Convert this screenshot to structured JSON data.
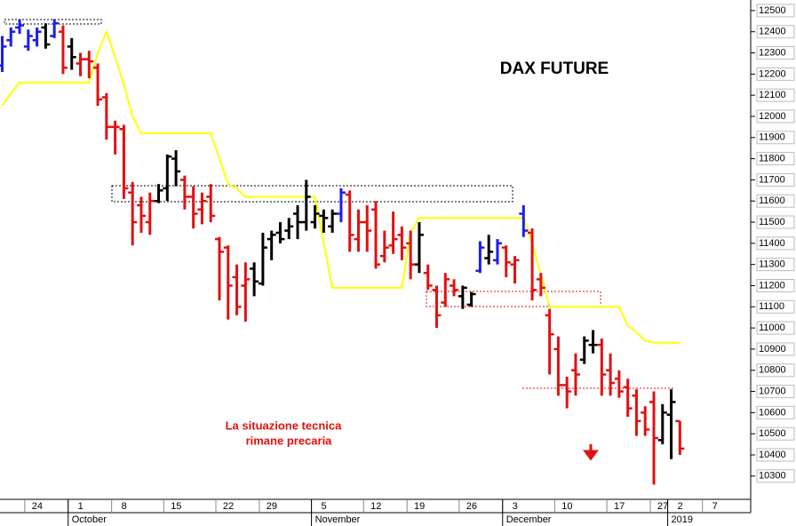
{
  "chart_data": {
    "type": "ohlc",
    "title": "DAX FUTURE",
    "annotation": [
      "La situazione tecnica",
      "rimane precaria"
    ],
    "categories": [
      null,
      null,
      null,
      "24",
      null,
      null,
      null,
      null,
      "1",
      null,
      null,
      null,
      null,
      "8",
      null,
      null,
      null,
      null,
      null,
      "15",
      null,
      null,
      null,
      null,
      null,
      "22",
      null,
      null,
      null,
      null,
      "29",
      null,
      null,
      null,
      null,
      null,
      "5",
      null,
      null,
      null,
      null,
      null,
      "12",
      null,
      null,
      null,
      null,
      "19",
      null,
      null,
      null,
      null,
      null,
      "26",
      null,
      null,
      null,
      null,
      "3",
      null,
      null,
      null,
      null,
      null,
      "10",
      null,
      null,
      null,
      null,
      null,
      "17",
      null,
      null,
      null,
      null,
      "27",
      null,
      "2",
      null,
      null,
      null,
      "7"
    ],
    "x_periods": [
      {
        "value": 8,
        "label": "October"
      },
      {
        "value": 36,
        "label": "November"
      },
      {
        "value": 58,
        "label": "December"
      },
      {
        "value": 77,
        "label": "2019"
      }
    ],
    "open": [
      12240,
      12360,
      12420,
      12330,
      12360,
      12420,
      12380,
      12400,
      12330,
      12250,
      12270,
      12230,
      12090,
      11950,
      11940,
      11640,
      11580,
      11500,
      11600,
      11660,
      11800,
      11700,
      11620,
      11560,
      11620,
      11420,
      11380,
      11240,
      11200,
      11280,
      11210,
      11420,
      11450,
      11460,
      11540,
      11500,
      11500,
      11530,
      11480,
      11540,
      11630,
      11420,
      11500,
      11560,
      11340,
      11390,
      11440,
      11400,
      11300,
      11260,
      11180,
      11120,
      11200,
      11150,
      11110,
      11270,
      11330,
      11320,
      11380,
      11300,
      11540,
      11450,
      11230,
      11060,
      10900,
      10730,
      10800,
      10850,
      10920,
      10920,
      10800,
      10760,
      10720,
      10680,
      10600,
      10650,
      10470,
      10590,
      10560,
      null,
      null,
      null
    ],
    "high": [
      12380,
      12420,
      12460,
      12410,
      12420,
      12440,
      12460,
      12430,
      12370,
      12300,
      12310,
      12250,
      12110,
      11980,
      11960,
      11690,
      11620,
      11640,
      11680,
      11820,
      11840,
      11720,
      11670,
      11640,
      11680,
      11430,
      11390,
      11300,
      11310,
      11310,
      11450,
      11460,
      11500,
      11520,
      11580,
      11700,
      11580,
      11560,
      11560,
      11660,
      11650,
      11560,
      11580,
      11600,
      11460,
      11550,
      11480,
      11460,
      11500,
      11300,
      11200,
      11260,
      11230,
      11200,
      11170,
      11410,
      11440,
      11420,
      11390,
      11340,
      11580,
      11470,
      11260,
      11090,
      10960,
      10770,
      10880,
      10960,
      10990,
      10950,
      10880,
      10800,
      10760,
      10710,
      10630,
      10700,
      10640,
      10710,
      10560,
      null,
      null,
      null
    ],
    "low": [
      12210,
      12330,
      12390,
      12310,
      12330,
      12320,
      12370,
      12200,
      12220,
      12190,
      12180,
      12050,
      11890,
      11820,
      11610,
      11390,
      11450,
      11440,
      11590,
      11600,
      11670,
      11560,
      11470,
      11490,
      11500,
      11130,
      11040,
      11060,
      11030,
      11150,
      11200,
      11320,
      11400,
      11420,
      11420,
      11460,
      11470,
      11450,
      11450,
      11500,
      11360,
      11360,
      11360,
      11280,
      11310,
      11350,
      11320,
      11230,
      11260,
      11180,
      11000,
      11100,
      11150,
      11090,
      11100,
      11260,
      11300,
      11300,
      11240,
      11210,
      11430,
      11130,
      11150,
      10780,
      10680,
      10620,
      10680,
      10830,
      10880,
      10680,
      10680,
      10670,
      10580,
      10490,
      10490,
      10260,
      10450,
      10380,
      10400,
      null,
      null,
      null
    ],
    "close": [
      12330,
      12400,
      12430,
      12380,
      12400,
      12340,
      12440,
      12230,
      12280,
      12270,
      12260,
      12080,
      11950,
      11950,
      11660,
      11500,
      11530,
      11600,
      11650,
      11810,
      11740,
      11620,
      11540,
      11600,
      11530,
      11360,
      11200,
      11100,
      11230,
      11220,
      11380,
      11440,
      11420,
      11480,
      11500,
      11620,
      11540,
      11520,
      11540,
      11640,
      11440,
      11500,
      11460,
      11300,
      11380,
      11420,
      11380,
      11300,
      11440,
      11200,
      11060,
      11230,
      11180,
      11190,
      11160,
      11380,
      11360,
      11400,
      11310,
      11320,
      11460,
      11180,
      11190,
      10970,
      10730,
      10700,
      10780,
      10940,
      10920,
      10780,
      10740,
      10700,
      10620,
      10560,
      10520,
      10480,
      10600,
      10650,
      10430,
      null,
      null,
      null
    ],
    "bar_colors": [
      "b",
      "b",
      "b",
      "b",
      "b",
      "k",
      "b",
      "r",
      "k",
      "r",
      "r",
      "r",
      "r",
      "r",
      "r",
      "r",
      "r",
      "r",
      "k",
      "k",
      "k",
      "r",
      "r",
      "r",
      "r",
      "r",
      "r",
      "r",
      "r",
      "k",
      "k",
      "k",
      "k",
      "k",
      "k",
      "k",
      "k",
      "k",
      "k",
      "b",
      "r",
      "r",
      "r",
      "r",
      "r",
      "r",
      "r",
      "r",
      "k",
      "r",
      "r",
      "r",
      "r",
      "k",
      "k",
      "b",
      "k",
      "b",
      "r",
      "r",
      "b",
      "r",
      "r",
      "r",
      "r",
      "r",
      "r",
      "k",
      "k",
      "r",
      "r",
      "r",
      "r",
      "r",
      "r",
      "r",
      "k",
      "k",
      "r",
      null,
      null,
      null
    ],
    "palette": {
      "b": "#1c1cf0",
      "k": "#000000",
      "r": "#e31010"
    },
    "stop_line": {
      "color": "#ffff00",
      "values": [
        12050,
        12110,
        12160,
        12160,
        12160,
        12160,
        12160,
        12160,
        12160,
        12160,
        12160,
        12300,
        12400,
        12280,
        12150,
        12000,
        11920,
        11920,
        11920,
        11920,
        11920,
        11920,
        11920,
        11920,
        11920,
        11800,
        11680,
        11660,
        11620,
        11620,
        11620,
        11620,
        11620,
        11620,
        11620,
        11620,
        11620,
        11400,
        11190,
        11190,
        11190,
        11190,
        11190,
        11190,
        11190,
        11190,
        11190,
        11450,
        11520,
        11520,
        11520,
        11520,
        11520,
        11520,
        11520,
        11520,
        11520,
        11520,
        11520,
        11520,
        11520,
        11400,
        11250,
        11100,
        11100,
        11100,
        11100,
        11100,
        11100,
        11100,
        11100,
        11100,
        11010,
        10980,
        10940,
        10930,
        10930,
        10930,
        10930,
        null,
        null,
        null
      ]
    },
    "ylim": [
      10190,
      12550
    ],
    "yticks": [
      10300,
      10400,
      10500,
      10600,
      10700,
      10800,
      10900,
      11000,
      11100,
      11200,
      11300,
      11400,
      11500,
      11600,
      11700,
      11800,
      11900,
      12000,
      12100,
      12200,
      12300,
      12400,
      12500
    ]
  }
}
